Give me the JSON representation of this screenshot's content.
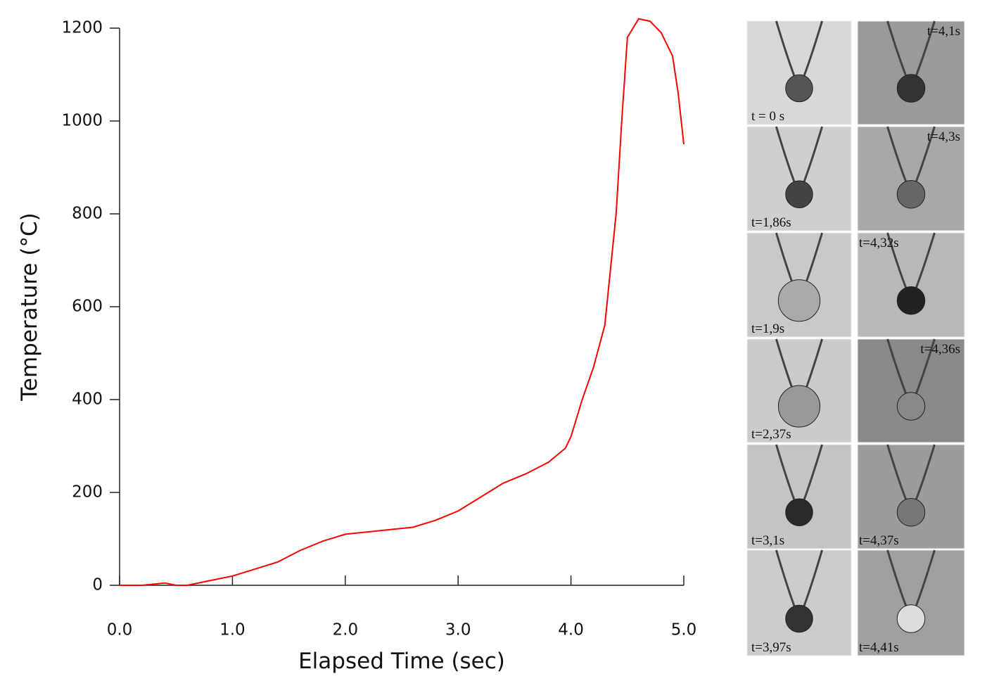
{
  "chart_data": {
    "type": "line",
    "x_label": "Elapsed Time (sec)",
    "y_label": "Temperature (°C)",
    "x": [
      0,
      0.2,
      0.4,
      0.5,
      0.6,
      0.8,
      1.0,
      1.2,
      1.4,
      1.6,
      1.8,
      2.0,
      2.2,
      2.4,
      2.6,
      2.8,
      3.0,
      3.2,
      3.4,
      3.6,
      3.8,
      3.95,
      4.0,
      4.1,
      4.2,
      4.3,
      4.4,
      4.45,
      4.5,
      4.6,
      4.7,
      4.8,
      4.9,
      4.95,
      5.0
    ],
    "values": [
      0,
      0,
      5,
      0,
      0,
      10,
      20,
      35,
      50,
      75,
      95,
      110,
      115,
      120,
      125,
      140,
      160,
      190,
      220,
      240,
      265,
      295,
      320,
      400,
      470,
      560,
      800,
      1000,
      1180,
      1220,
      1215,
      1190,
      1140,
      1060,
      950
    ],
    "color": "#ff0000",
    "xlim": [
      0,
      5
    ],
    "ylim": [
      0,
      1200
    ],
    "xticks": [
      {
        "value": 0,
        "label": "0.0"
      },
      {
        "value": 1,
        "label": "1.0"
      },
      {
        "value": 2,
        "label": "2.0"
      },
      {
        "value": 3,
        "label": "3.0"
      },
      {
        "value": 4,
        "label": "4.0"
      },
      {
        "value": 5,
        "label": "5.0"
      }
    ],
    "yticks": [
      0,
      200,
      400,
      600,
      800,
      1000,
      1200
    ]
  },
  "frames": [
    {
      "label": "t = 0 s"
    },
    {
      "label": "t=4,1s"
    },
    {
      "label": "t=1,86s"
    },
    {
      "label": "t=4,3s"
    },
    {
      "label": "t=1,9s"
    },
    {
      "label": "t=4,32s"
    },
    {
      "label": "t=2,37s"
    },
    {
      "label": "t=4,36s"
    },
    {
      "label": "t=3,1s"
    },
    {
      "label": "t=4,37s"
    },
    {
      "label": "t=3,97s"
    },
    {
      "label": "t=4,41s"
    }
  ]
}
